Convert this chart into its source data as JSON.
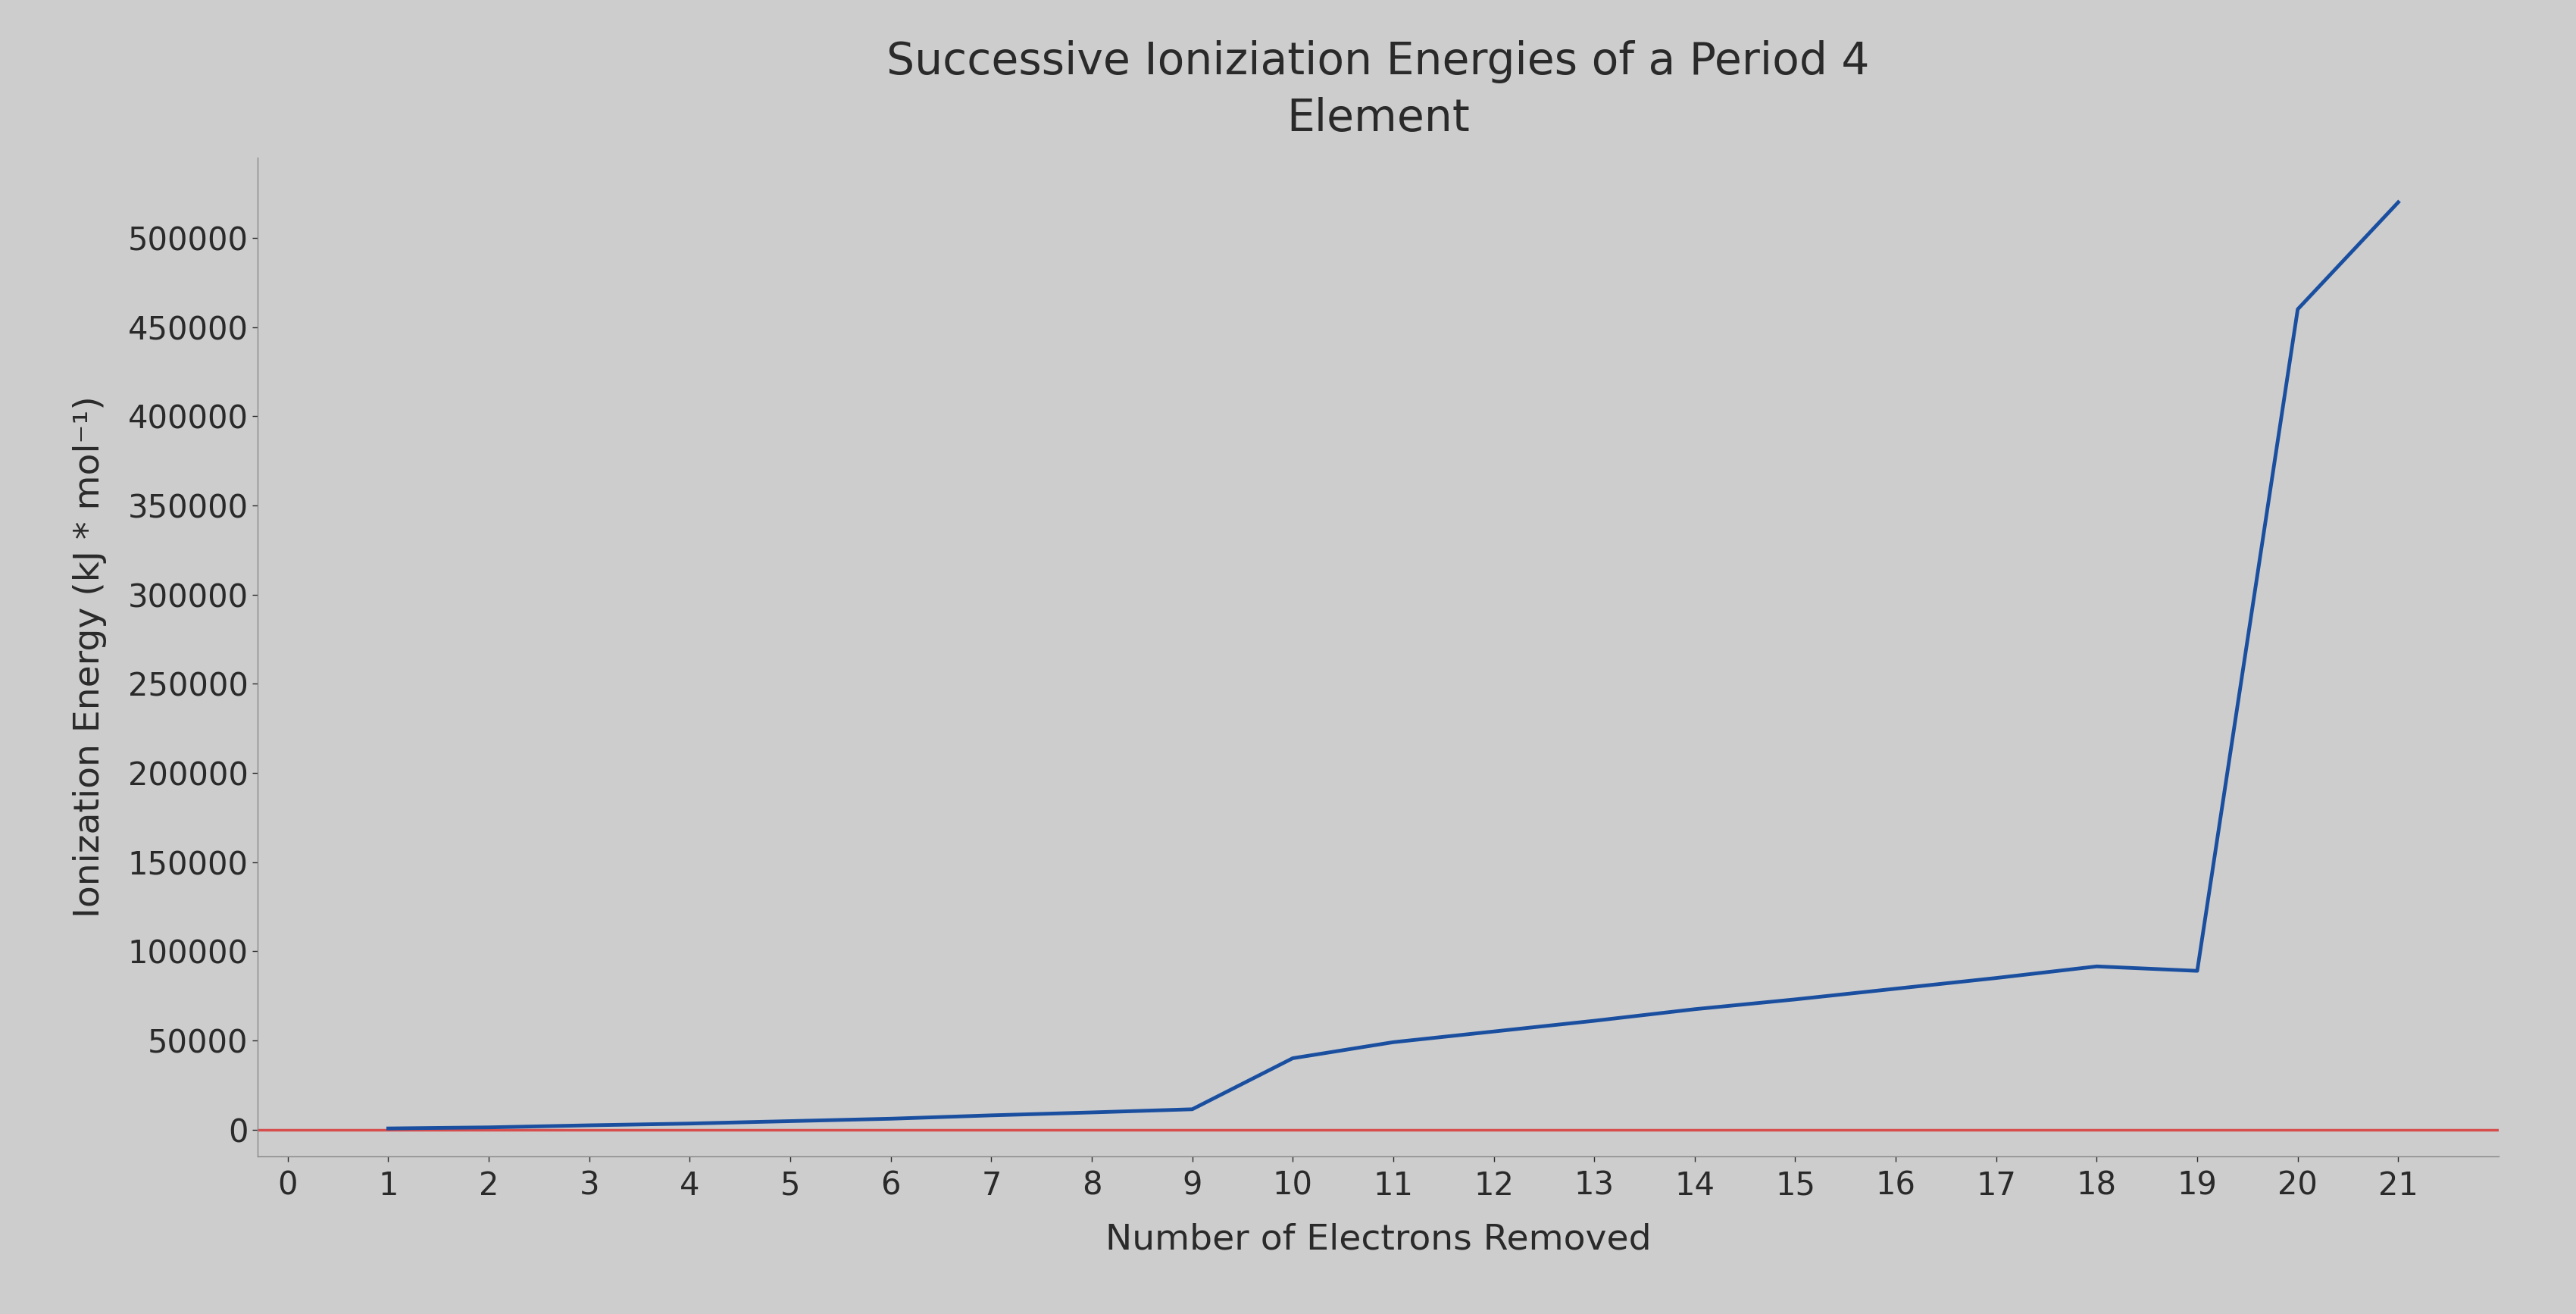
{
  "title_line1": "Successive Ioniziation Energies of a Period 4",
  "title_line2": "Element",
  "xlabel": "Number of Electrons Removed",
  "ylabel": "Ionization Energy (kJ * mol⁻¹)",
  "x_values": [
    1,
    2,
    3,
    4,
    5,
    6,
    7,
    8,
    9,
    10,
    11,
    12,
    13,
    14,
    15,
    16,
    17,
    18,
    19,
    20,
    21
  ],
  "y_values": [
    631,
    1235,
    2389,
    3374,
    4740,
    6085,
    7975,
    9620,
    11390,
    40000,
    49000,
    55000,
    61000,
    67500,
    73000,
    79000,
    85000,
    91500,
    89000,
    460000,
    520000
  ],
  "line_color": "#1a4fa0",
  "line_color2": "#d94040",
  "y_ticks": [
    0,
    50000,
    100000,
    150000,
    200000,
    250000,
    300000,
    350000,
    400000,
    450000,
    500000
  ],
  "x_ticks": [
    0,
    1,
    2,
    3,
    4,
    5,
    6,
    7,
    8,
    9,
    10,
    11,
    12,
    13,
    14,
    15,
    16,
    17,
    18,
    19,
    20,
    21
  ],
  "ylim": [
    -15000,
    545000
  ],
  "xlim": [
    -0.3,
    22
  ],
  "background_color": "#cdcdcd",
  "plot_bg_color": "#cdcdcd",
  "title_fontsize": 42,
  "label_fontsize": 34,
  "tick_fontsize": 30,
  "line_width": 3.5
}
